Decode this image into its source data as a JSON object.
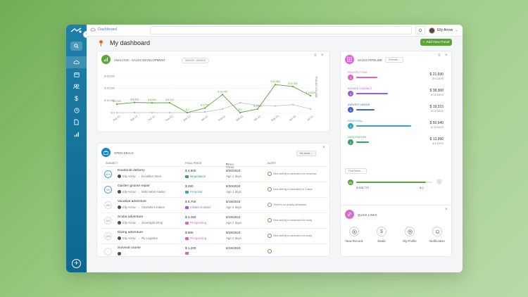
{
  "breadcrumb": {
    "label": "Dashboard"
  },
  "user": {
    "name": "Elly Arrow"
  },
  "page": {
    "title": "My dashboard",
    "add_panel_label": "Add New Panel"
  },
  "colors": {
    "accent_green": "#5aa637",
    "sidebar": "#1778a3",
    "prospecting": "#e062c2",
    "initiate_contact": "#a05cd6",
    "identify_needs": "#3e63c8",
    "proposal": "#2fa6c8",
    "negotiation": "#3aa064"
  },
  "sidebar": {
    "icons": [
      "search-icon",
      "cloud-icon",
      "calendar-icon",
      "people-icon",
      "dollar-icon",
      "clock-icon",
      "document-icon",
      "chart-icon"
    ],
    "add_icon": "plus-circle-icon"
  },
  "analysis": {
    "title": "ANALYSIS - SALES DEVELOPMENT",
    "date_range": "08/2022 - 08/2023",
    "legend": "TRADED VOLUME"
  },
  "chart_data": {
    "type": "line",
    "categories": [
      "Aug 22",
      "Sep 22",
      "Oct 22",
      "Nov 22",
      "Dec 22",
      "Jan 23",
      "Feb 23",
      "Mar 23",
      "Apr 23",
      "May 23",
      "Jun 23",
      "Jul 23"
    ],
    "yticks": [
      "$ 30,000",
      "$ 20,000",
      "$ 10,000",
      "$ 0"
    ],
    "ylim": [
      0,
      30000
    ],
    "series": [
      {
        "values": [
          6905,
          8300,
          8000,
          8100,
          0,
          3700,
          14745,
          0,
          2960,
          22960,
          21392,
          13929
        ],
        "labels": [
          "$ 6,905",
          "$ 8,300",
          "$ 8,000",
          "$ 8,100",
          "$ 0",
          "$ 3,700",
          "$ 14,745",
          "$ 0",
          "$ 2,960",
          "$ 22,960",
          "$ 21,392",
          "$ 13,929"
        ],
        "color": "#5aa637"
      },
      {
        "values": [
          0,
          0,
          0,
          0,
          0,
          500,
          3000,
          8000,
          6000,
          5500,
          6500,
          3000
        ],
        "color": "#b9bdc2"
      }
    ]
  },
  "deals": {
    "title": "OPEN DEALS",
    "filter": "My deals",
    "columns": [
      "SUBJECT",
      "FINAL PRICE",
      "OPEN FROM",
      "ALERT"
    ],
    "rows": [
      {
        "progress": "80%",
        "subject": "Doorknob delivery",
        "owner": "Elly Arrow",
        "company": "Excalibur Steel",
        "price": "$ 4,900",
        "stage": "Negotiation",
        "stage_color": "#3aa064",
        "date": "8/20/2024",
        "ago": "Age 1 days",
        "alert": "Next activity is scheduled for tomorrow",
        "alert_color": "#6a9a3c"
      },
      {
        "progress": "75%",
        "subject": "Garden gnome repair",
        "owner": "Elly Arrow",
        "company": "Wild Safari Alaska",
        "price": "$ 290",
        "stage": "Proposal",
        "stage_color": "#2fa6c8",
        "date": "8/20/2024",
        "ago": "Age 1 days",
        "alert": "Next activity is scheduled in 3 days",
        "alert_color": "#6a9a3c"
      },
      {
        "progress": "25%",
        "subject": "Vacation adventure",
        "owner": "Elly Arrow",
        "company": "Charlotte's Cakes",
        "price": "$ 9,700",
        "stage": "Initiate Contact",
        "stage_color": "#a05cd6",
        "date": "8/19/2024",
        "ago": "Age 2 days",
        "alert": "There is no activity scheduled",
        "alert_color": "#8a8f95"
      },
      {
        "progress": "10%",
        "subject": "Scuba adventure",
        "owner": "Elly Arrow",
        "company": "Greenlight Shop",
        "price": "$ 3,450",
        "stage": "Prospecting",
        "stage_color": "#e062c2",
        "date": "8/19/2024",
        "ago": "Age 2 days",
        "alert": "Next activity is scheduled for today",
        "alert_color": "#6a9a3c"
      },
      {
        "progress": "10%",
        "subject": "Diving adventure",
        "owner": "Elly Arrow",
        "company": "Fly Logistics",
        "price": "$ 980",
        "stage": "Prospecting",
        "stage_color": "#e062c2",
        "date": "8/19/2024",
        "ago": "Age 2 days",
        "alert": "Next activity is scheduled for today",
        "alert_color": "#6a9a3c"
      },
      {
        "progress": "",
        "subject": "Survival course",
        "owner": "",
        "company": "",
        "price": "$ 1,200",
        "stage": "",
        "stage_color": "#e062c2",
        "date": "8/19/2024",
        "ago": "",
        "alert": "",
        "alert_color": "#6a9a3c"
      }
    ]
  },
  "pipeline": {
    "title": "SALES PIPELINE",
    "filter": "Filterate...",
    "stages": [
      {
        "name": "PROSPECTING",
        "count": "4",
        "amount": "$ 21,690",
        "days": "Ø 6 DAYS",
        "fill": 0.3
      },
      {
        "name": "INITIATE CONTACT",
        "count": "4",
        "amount": "$ 38,300",
        "days": "Ø 16 DAYS",
        "fill": 0.45
      },
      {
        "name": "IDENTIFY NEEDS",
        "count": "4",
        "amount": "$ 19,315",
        "days": "Ø 19 DAYS",
        "fill": 0.26
      },
      {
        "name": "PROPOSAL",
        "count": "2",
        "amount": "$ 50,640",
        "days": "Ø 23 DAYS",
        "fill": 0.78
      },
      {
        "name": "NEGOTIATION",
        "count": "2",
        "amount": "$ 13,990",
        "days": "Ø 6 DAYS",
        "fill": 0.18
      }
    ],
    "period": "First Week",
    "won_count": "50",
    "won_amount": "$ 528,775",
    "won_zero": "$ 0",
    "won_fill": 0.92
  },
  "quick_links": {
    "title": "QUICK LINKS",
    "items": [
      {
        "label": "New Record",
        "icon": "plus-icon"
      },
      {
        "label": "Deals",
        "icon": "dollar-icon"
      },
      {
        "label": "My Profile",
        "icon": "profile-icon"
      },
      {
        "label": "Notification",
        "icon": "bell-icon"
      }
    ]
  }
}
